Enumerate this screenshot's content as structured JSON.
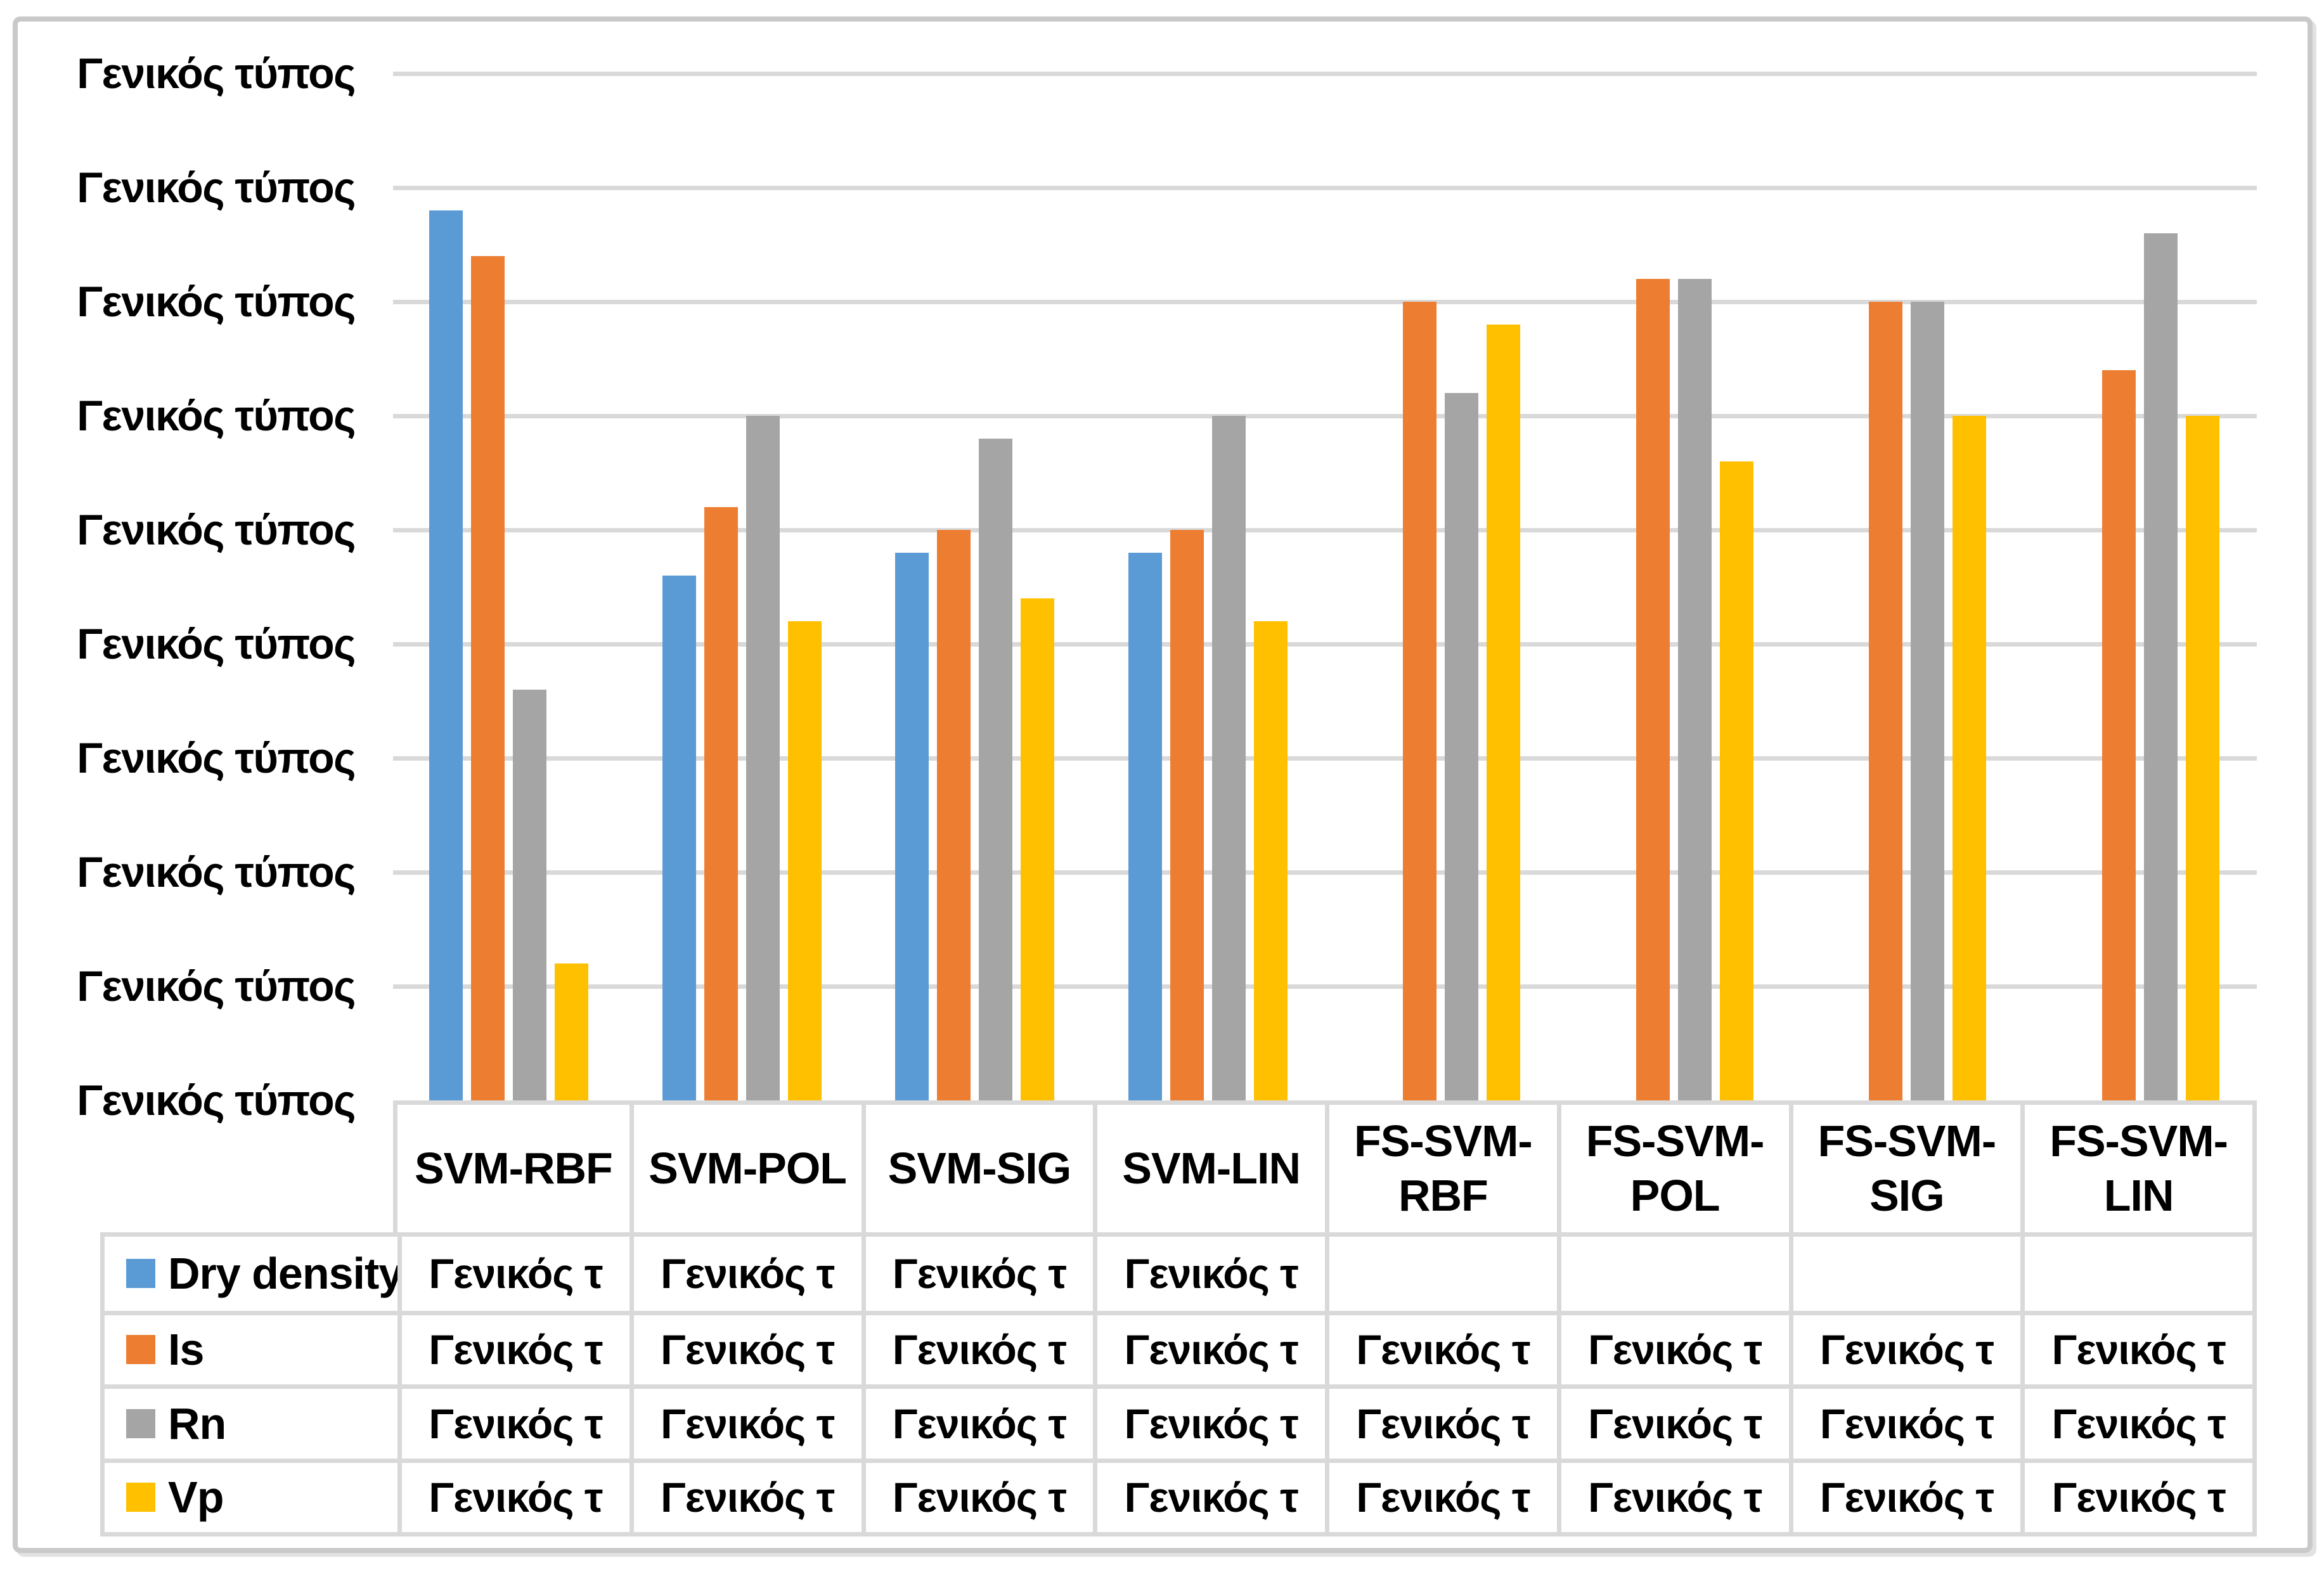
{
  "chart_data": {
    "type": "bar",
    "title": "",
    "categories": [
      "SVM-RBF",
      "SVM-POL",
      "SVM-SIG",
      "SVM-LIN",
      "FS-SVM-RBF",
      "FS-SVM-POL",
      "FS-SVM-SIG",
      "FS-SVM-LIN"
    ],
    "category_header_lines": [
      [
        "SVM-RBF"
      ],
      [
        "SVM-POL"
      ],
      [
        "SVM-SIG"
      ],
      [
        "SVM-LIN"
      ],
      [
        "FS-SVM-",
        "RBF"
      ],
      [
        "FS-SVM-",
        "POL"
      ],
      [
        "FS-SVM-",
        "SIG"
      ],
      [
        "FS-SVM-",
        "LIN"
      ]
    ],
    "series": [
      {
        "name": "Dry density",
        "color": "#5B9BD5",
        "values": [
          7.8,
          4.6,
          4.8,
          4.8,
          null,
          null,
          null,
          null
        ]
      },
      {
        "name": "Is",
        "color": "#ED7D31",
        "values": [
          7.4,
          5.2,
          5.0,
          5.0,
          7.0,
          7.2,
          7.0,
          6.4
        ]
      },
      {
        "name": "Rn",
        "color": "#A5A5A5",
        "values": [
          3.6,
          6.0,
          5.8,
          6.0,
          6.2,
          7.2,
          7.0,
          7.6
        ]
      },
      {
        "name": "Vp",
        "color": "#FFC000",
        "values": [
          1.2,
          4.2,
          4.4,
          4.2,
          6.8,
          5.6,
          6.0,
          6.0
        ]
      }
    ],
    "y_axis": {
      "tick_labels": [
        "Γενικός τύπος",
        "Γενικός τύπος",
        "Γενικός τύπος",
        "Γενικός τύπος",
        "Γενικός τύπος",
        "Γενικός τύπος",
        "Γενικός τύπος",
        "Γενικός τύπος",
        "Γενικός τύπος",
        "Γενικός τύπος"
      ],
      "ylim": [
        0,
        9
      ],
      "units_per_gridline": 1
    },
    "grid": true,
    "gridline_color": "#D9D9D9",
    "legend_position": "data-table-left"
  },
  "data_table": {
    "rows": [
      {
        "label": "Dry density",
        "swatch_color": "#5B9BD5",
        "cells": [
          "Γενικός τ",
          "Γενικός τ",
          "Γενικός τ",
          "Γενικός τ",
          "",
          "",
          "",
          ""
        ]
      },
      {
        "label": "Is",
        "swatch_color": "#ED7D31",
        "cells": [
          "Γενικός τ",
          "Γενικός τ",
          "Γενικός τ",
          "Γενικός τ",
          "Γενικός τ",
          "Γενικός τ",
          "Γενικός τ",
          "Γενικός τ"
        ]
      },
      {
        "label": "Rn",
        "swatch_color": "#A5A5A5",
        "cells": [
          "Γενικός τ",
          "Γενικός τ",
          "Γενικός τ",
          "Γενικός τ",
          "Γενικός τ",
          "Γενικός τ",
          "Γενικός τ",
          "Γενικός τ"
        ]
      },
      {
        "label": "Vp",
        "swatch_color": "#FFC000",
        "cells": [
          "Γενικός τ",
          "Γενικός τ",
          "Γενικός τ",
          "Γενικός τ",
          "Γενικός τ",
          "Γενικός τ",
          "Γενικός τ",
          "Γενικός τ"
        ]
      }
    ]
  },
  "colors": {
    "frame_border": "#C9C9C9",
    "table_border": "#D9D9D9",
    "background": "#FFFFFF",
    "text": "#000000"
  }
}
